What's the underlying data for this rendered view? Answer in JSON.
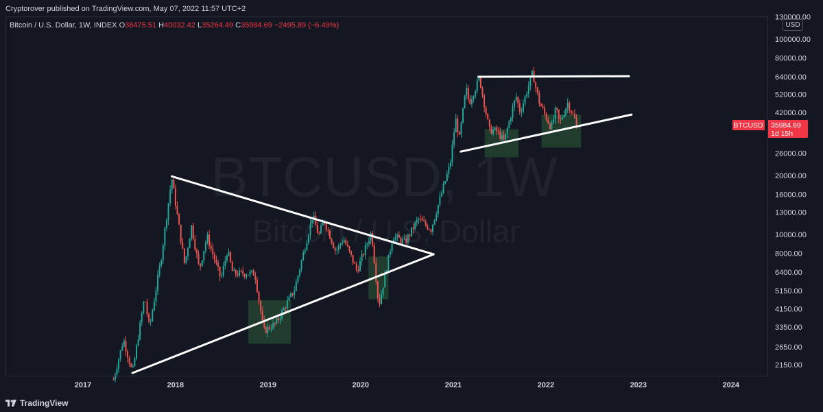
{
  "header": {
    "published_text": "Cryptorover published on TradingView.com, May 07, 2022 11:57 UTC+2"
  },
  "legend": {
    "symbol_text": "Bitcoin / U.S. Dollar, 1W, INDEX",
    "o_label": "O",
    "o_value": "38475.51",
    "h_label": "H",
    "h_value": "40032.42",
    "l_label": "L",
    "l_value": "35264.49",
    "c_label": "C",
    "c_value": "35984.69",
    "change": "−2495.89 (−6.49%)"
  },
  "watermark": {
    "ticker": "BTCUSD, 1W",
    "name": "Bitcoin / U.S. Dollar"
  },
  "price_axis": {
    "currency": "USD"
  },
  "last_price": {
    "symbol": "BTCUSD",
    "value": "35984.69",
    "countdown": "1d 15h"
  },
  "footer": {
    "brand": "TradingView"
  },
  "colors": {
    "background": "#131722",
    "up": "#26a69a",
    "down": "#ef5350",
    "zone": "#2e6b3c",
    "trendline": "#ffffff",
    "last_price": "#f23645"
  },
  "chart_data": {
    "type": "candlestick",
    "scale": "log",
    "interval": "1W",
    "y_ticks": [
      2150,
      2650,
      3350,
      4150,
      5150,
      6400,
      8000,
      10000,
      13000,
      16000,
      20000,
      26000,
      42000,
      52000,
      64000,
      80000,
      100000,
      130000
    ],
    "x_ticks": [
      "2017",
      "2018",
      "2019",
      "2020",
      "2021",
      "2022",
      "2023",
      "2024"
    ],
    "last_close": 35984.69,
    "price_path": [
      [
        "2017-05-01",
        1800
      ],
      [
        "2017-06-10",
        2900
      ],
      [
        "2017-07-15",
        1950
      ],
      [
        "2017-09-01",
        4800
      ],
      [
        "2017-09-20",
        3300
      ],
      [
        "2017-11-05",
        7500
      ],
      [
        "2017-12-17",
        19500
      ],
      [
        "2018-02-06",
        7000
      ],
      [
        "2018-03-05",
        11000
      ],
      [
        "2018-04-05",
        6600
      ],
      [
        "2018-05-05",
        9800
      ],
      [
        "2018-06-29",
        5900
      ],
      [
        "2018-07-25",
        8300
      ],
      [
        "2018-08-15",
        6300
      ],
      [
        "2018-11-10",
        6300
      ],
      [
        "2018-12-15",
        3200
      ],
      [
        "2019-02-01",
        3500
      ],
      [
        "2019-04-15",
        5200
      ],
      [
        "2019-06-26",
        12500
      ],
      [
        "2019-07-20",
        9800
      ],
      [
        "2019-08-10",
        11800
      ],
      [
        "2019-09-25",
        8200
      ],
      [
        "2019-10-26",
        9500
      ],
      [
        "2019-12-18",
        6500
      ],
      [
        "2020-02-13",
        10300
      ],
      [
        "2020-03-13",
        4300
      ],
      [
        "2020-05-08",
        9800
      ],
      [
        "2020-06-25",
        9100
      ],
      [
        "2020-08-15",
        12000
      ],
      [
        "2020-10-05",
        10600
      ],
      [
        "2020-12-20",
        23000
      ],
      [
        "2021-01-10",
        39000
      ],
      [
        "2021-01-25",
        31000
      ],
      [
        "2021-02-20",
        56000
      ],
      [
        "2021-03-05",
        47000
      ],
      [
        "2021-04-14",
        63000
      ],
      [
        "2021-05-23",
        34000
      ],
      [
        "2021-06-20",
        34000
      ],
      [
        "2021-07-20",
        30000
      ],
      [
        "2021-09-05",
        51000
      ],
      [
        "2021-09-22",
        42000
      ],
      [
        "2021-11-10",
        67000
      ],
      [
        "2021-12-04",
        48000
      ],
      [
        "2022-01-22",
        35000
      ],
      [
        "2022-02-10",
        44000
      ],
      [
        "2022-02-24",
        37000
      ],
      [
        "2022-03-28",
        47000
      ],
      [
        "2022-05-06",
        35984.69
      ]
    ],
    "trendlines": [
      {
        "from": [
          "2017-12-17",
          19800
        ],
        "to": [
          "2020-10-15",
          7900
        ]
      },
      {
        "from": [
          "2017-07-15",
          1950
        ],
        "to": [
          "2020-10-15",
          7900
        ]
      },
      {
        "from": [
          "2021-04-10",
          64000
        ],
        "to": [
          "2022-11-25",
          64500
        ]
      },
      {
        "from": [
          "2021-01-30",
          26500
        ],
        "to": [
          "2022-12-05",
          41000
        ]
      }
    ],
    "zones": [
      {
        "from": "2018-10-15",
        "to": "2019-04-01",
        "low": 2750,
        "high": 4600
      },
      {
        "from": "2020-02-01",
        "to": "2020-04-20",
        "low": 4650,
        "high": 7700
      },
      {
        "from": "2021-05-05",
        "to": "2021-09-15",
        "low": 24800,
        "high": 34500
      },
      {
        "from": "2021-12-15",
        "to": "2022-05-20",
        "low": 27800,
        "high": 41000
      }
    ],
    "title": "",
    "xlabel": "",
    "ylabel": ""
  }
}
